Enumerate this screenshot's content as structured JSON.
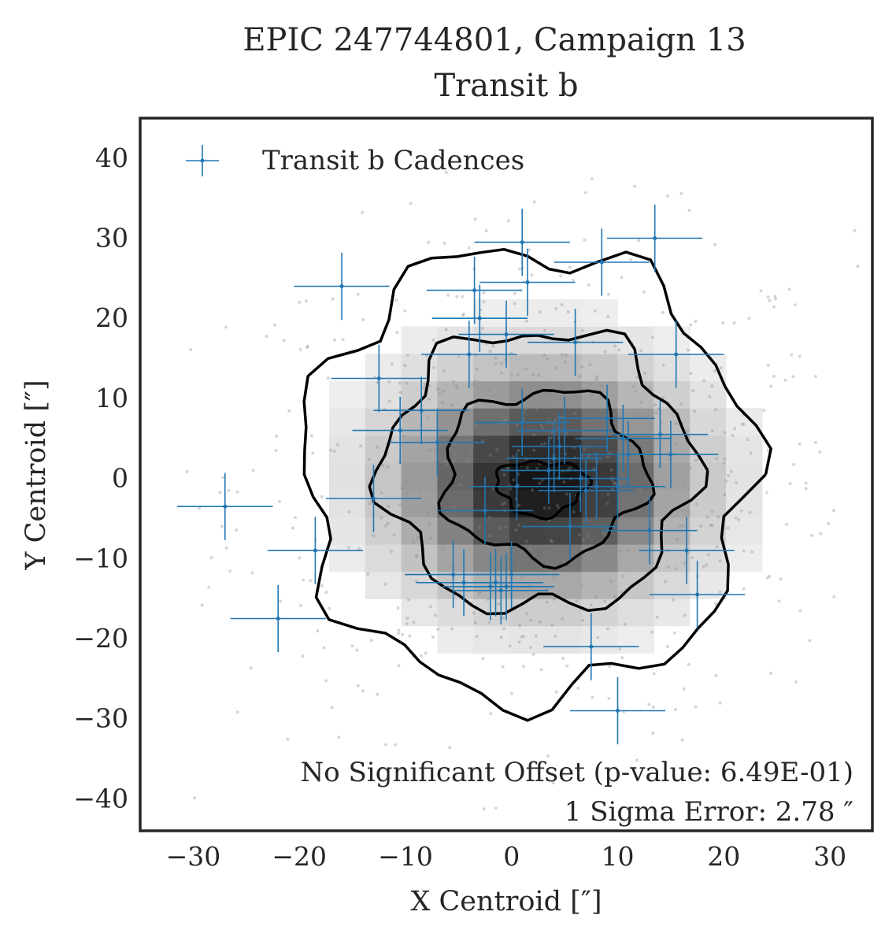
{
  "chart_data": {
    "type": "scatter",
    "title_line1": "EPIC 247744801, Campaign 13",
    "title_line2": "Transit b",
    "xlabel": "X Centroid [″]",
    "ylabel": "Y Centroid [″]",
    "xlim": [
      -35,
      34
    ],
    "ylim": [
      -44,
      45
    ],
    "xticks": [
      -30,
      -20,
      -10,
      0,
      10,
      20,
      30
    ],
    "yticks": [
      -40,
      -30,
      -20,
      -10,
      0,
      10,
      20,
      30,
      40
    ],
    "grid": false,
    "legend_position": "top-left",
    "legend_entry": "Transit b Cadences",
    "annotation_line1": "No Significant Offset (p-value: 6.49E-01)",
    "annotation_line2": "1 Sigma Error: 2.78 ″",
    "series_color": "#1f77b4",
    "x_error": 4.5,
    "y_error": 4.2,
    "series": [
      {
        "points": [
          [
            -27,
            -3.5
          ],
          [
            -22,
            -17.5
          ],
          [
            -18.5,
            -9
          ],
          [
            -16,
            24
          ],
          [
            -13,
            -2.5
          ],
          [
            -12.5,
            12.5
          ],
          [
            -10.5,
            6
          ],
          [
            -8.5,
            8.5
          ],
          [
            -7,
            4.5
          ],
          [
            -5.5,
            -12
          ],
          [
            -4.5,
            -13
          ],
          [
            -4,
            15.5
          ],
          [
            -3.5,
            23.5
          ],
          [
            -3,
            20
          ],
          [
            -2.5,
            -4
          ],
          [
            -2,
            -13.5
          ],
          [
            -1.5,
            -13
          ],
          [
            -1,
            -14
          ],
          [
            -0.5,
            -13.5
          ],
          [
            0,
            -12
          ],
          [
            -0.5,
            18
          ],
          [
            0.5,
            -1
          ],
          [
            1,
            7
          ],
          [
            1,
            29.5
          ],
          [
            1.5,
            24.5
          ],
          [
            3.5,
            1
          ],
          [
            4,
            2.5
          ],
          [
            4.5,
            4
          ],
          [
            5,
            6
          ],
          [
            5.5,
            -6
          ],
          [
            6,
            17
          ],
          [
            6.5,
            0
          ],
          [
            7,
            -1.5
          ],
          [
            7.5,
            -21
          ],
          [
            8,
            -1
          ],
          [
            8.5,
            27
          ],
          [
            9,
            7.5
          ],
          [
            10,
            -1
          ],
          [
            10.5,
            5
          ],
          [
            11,
            3
          ],
          [
            10,
            -29
          ],
          [
            13,
            -6.5
          ],
          [
            13.5,
            30
          ],
          [
            14,
            5.5
          ],
          [
            15,
            3
          ],
          [
            15.5,
            15.5
          ],
          [
            16.5,
            -9
          ],
          [
            17.5,
            -14.5
          ]
        ]
      }
    ]
  }
}
